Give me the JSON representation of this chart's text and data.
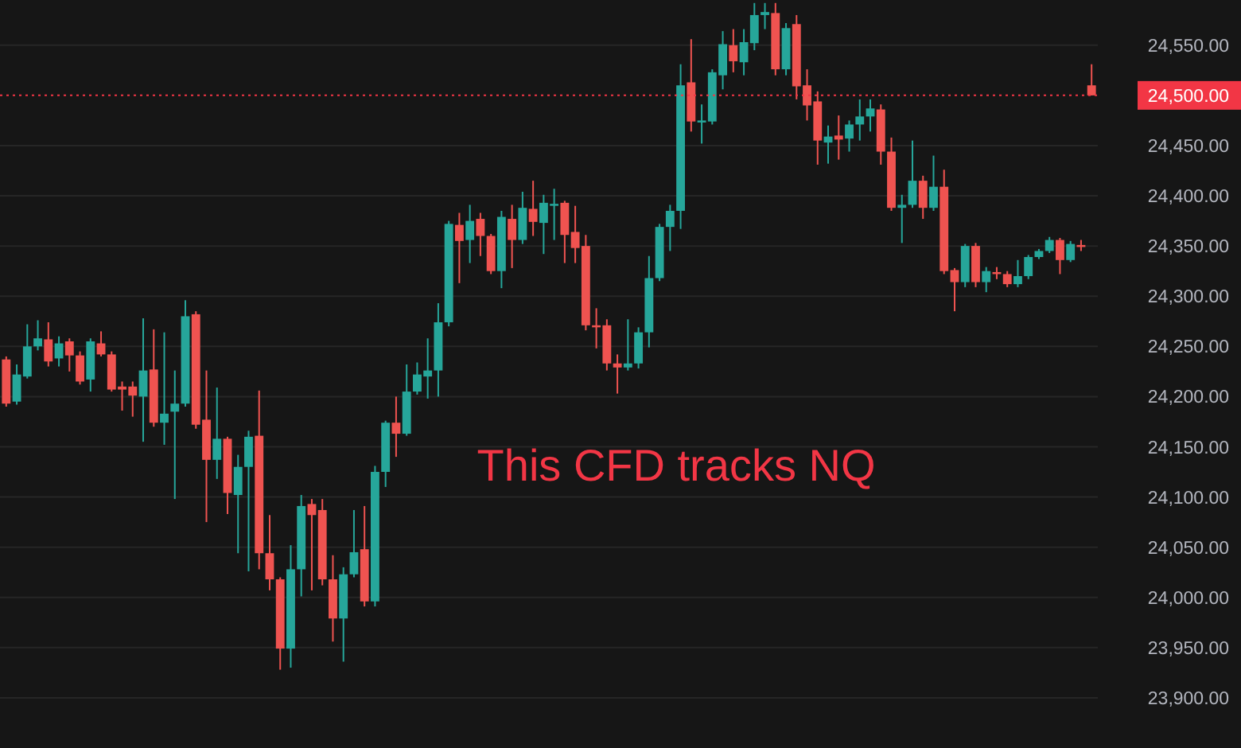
{
  "chart_data": {
    "type": "candlestick",
    "categories": [
      null,
      null,
      null,
      null,
      null,
      null,
      null,
      null,
      null,
      null,
      null,
      null,
      null,
      null,
      null,
      null,
      null,
      null,
      null,
      null,
      null,
      null,
      null,
      null,
      null,
      null,
      null,
      null,
      null,
      null,
      null,
      null,
      null,
      null,
      null,
      null,
      null,
      null,
      null,
      null,
      null,
      null,
      null,
      null,
      null,
      null,
      null,
      null,
      null,
      null,
      null,
      null,
      null,
      null,
      null,
      null,
      null,
      null,
      null,
      null,
      null,
      null,
      null,
      null,
      null,
      null,
      null,
      null,
      null,
      null,
      null,
      null,
      null,
      null,
      null,
      null,
      null,
      null,
      null,
      null,
      null,
      null,
      null,
      null,
      null,
      null,
      null,
      null,
      null,
      null,
      null,
      null,
      null,
      null,
      null,
      null,
      null,
      null,
      null,
      null,
      null,
      null,
      null,
      null
    ],
    "ohlc": [
      [
        24237,
        24240,
        24190,
        24193
      ],
      [
        24195,
        24232,
        24192,
        24222
      ],
      [
        24220,
        24272,
        24218,
        24250
      ],
      [
        24250,
        24276,
        24246,
        24258
      ],
      [
        24257,
        24274,
        24230,
        24235
      ],
      [
        24238,
        24260,
        24230,
        24253
      ],
      [
        24255,
        24258,
        24225,
        24241
      ],
      [
        24241,
        24245,
        24212,
        24215
      ],
      [
        24217,
        24258,
        24205,
        24255
      ],
      [
        24253,
        24265,
        24240,
        24242
      ],
      [
        24242,
        24245,
        24205,
        24207
      ],
      [
        24210,
        24215,
        24186,
        24207
      ],
      [
        24210,
        24215,
        24180,
        24201
      ],
      [
        24200,
        24278,
        24155,
        24226
      ],
      [
        24227,
        24267,
        24170,
        24174
      ],
      [
        24174,
        24264,
        24152,
        24183
      ],
      [
        24185,
        24226,
        24098,
        24193
      ],
      [
        24193,
        24296,
        24190,
        24280
      ],
      [
        24282,
        24285,
        24168,
        24172
      ],
      [
        24177,
        24226,
        24075,
        24137
      ],
      [
        24137,
        24209,
        24118,
        24158
      ],
      [
        24158,
        24160,
        24083,
        24104
      ],
      [
        24102,
        24142,
        24044,
        24130
      ],
      [
        24130,
        24166,
        24026,
        24160
      ],
      [
        24161,
        24206,
        24028,
        24044
      ],
      [
        24044,
        24082,
        24007,
        24018
      ],
      [
        24018,
        24020,
        23928,
        23949
      ],
      [
        23949,
        24052,
        23930,
        24028
      ],
      [
        24028,
        24102,
        24001,
        24091
      ],
      [
        24093,
        24098,
        24007,
        24082
      ],
      [
        24087,
        24098,
        24012,
        24018
      ],
      [
        24018,
        24042,
        23956,
        23979
      ],
      [
        23979,
        24030,
        23936,
        24023
      ],
      [
        24023,
        24087,
        24020,
        24045
      ],
      [
        24048,
        24091,
        23991,
        23996
      ],
      [
        23996,
        24131,
        23991,
        24125
      ],
      [
        24125,
        24176,
        24110,
        24174
      ],
      [
        24174,
        24200,
        24140,
        24163
      ],
      [
        24163,
        24232,
        24161,
        24205
      ],
      [
        24205,
        24234,
        24202,
        24222
      ],
      [
        24220,
        24258,
        24198,
        24226
      ],
      [
        24226,
        24293,
        24200,
        24274
      ],
      [
        24274,
        24375,
        24270,
        24372
      ],
      [
        24371,
        24383,
        24313,
        24355
      ],
      [
        24356,
        24391,
        24333,
        24375
      ],
      [
        24377,
        24383,
        24340,
        24360
      ],
      [
        24360,
        24362,
        24322,
        24325
      ],
      [
        24325,
        24385,
        24308,
        24379
      ],
      [
        24377,
        24391,
        24328,
        24356
      ],
      [
        24356,
        24404,
        24352,
        24388
      ],
      [
        24387,
        24415,
        24360,
        24374
      ],
      [
        24373,
        24401,
        24342,
        24393
      ],
      [
        24390,
        24407,
        24356,
        24392
      ],
      [
        24393,
        24395,
        24333,
        24361
      ],
      [
        24364,
        24390,
        24333,
        24348
      ],
      [
        24350,
        24361,
        24266,
        24271
      ],
      [
        24271,
        24288,
        24248,
        24269
      ],
      [
        24271,
        24277,
        24226,
        24233
      ],
      [
        24233,
        24242,
        24203,
        24229
      ],
      [
        24229,
        24277,
        24226,
        24233
      ],
      [
        24233,
        24269,
        24228,
        24264
      ],
      [
        24264,
        24340,
        24249,
        24318
      ],
      [
        24318,
        24372,
        24315,
        24369
      ],
      [
        24369,
        24391,
        24345,
        24385
      ],
      [
        24385,
        24531,
        24367,
        24510
      ],
      [
        24513,
        24556,
        24464,
        24474
      ],
      [
        24473,
        24491,
        24452,
        24475
      ],
      [
        24474,
        24526,
        24471,
        24523
      ],
      [
        24520,
        24564,
        24506,
        24551
      ],
      [
        24550,
        24566,
        24523,
        24534
      ],
      [
        24533,
        24566,
        24520,
        24553
      ],
      [
        24552,
        24592,
        24545,
        24580
      ],
      [
        24580,
        24592,
        24566,
        24583
      ],
      [
        24582,
        24592,
        24520,
        24526
      ],
      [
        24526,
        24572,
        24520,
        24567
      ],
      [
        24571,
        24580,
        24496,
        24509
      ],
      [
        24510,
        24526,
        24475,
        24490
      ],
      [
        24494,
        24504,
        24431,
        24455
      ],
      [
        24453,
        24470,
        24432,
        24459
      ],
      [
        24460,
        24480,
        24436,
        24456
      ],
      [
        24457,
        24475,
        24444,
        24471
      ],
      [
        24471,
        24496,
        24455,
        24479
      ],
      [
        24479,
        24496,
        24464,
        24487
      ],
      [
        24486,
        24491,
        24431,
        24444
      ],
      [
        24444,
        24458,
        24385,
        24388
      ],
      [
        24388,
        24401,
        24353,
        24391
      ],
      [
        24391,
        24455,
        24388,
        24415
      ],
      [
        24415,
        24420,
        24377,
        24388
      ],
      [
        24388,
        24440,
        24385,
        24409
      ],
      [
        24409,
        24426,
        24322,
        24325
      ],
      [
        24326,
        24328,
        24285,
        24314
      ],
      [
        24314,
        24352,
        24309,
        24350
      ],
      [
        24350,
        24353,
        24309,
        24314
      ],
      [
        24314,
        24329,
        24304,
        24325
      ],
      [
        24324,
        24329,
        24317,
        24322
      ],
      [
        24322,
        24325,
        24309,
        24312
      ],
      [
        24312,
        24336,
        24309,
        24320
      ],
      [
        24320,
        24341,
        24317,
        24339
      ],
      [
        24339,
        24347,
        24337,
        24345
      ],
      [
        24345,
        24359,
        24343,
        24356
      ],
      [
        24356,
        24358,
        24322,
        24336
      ],
      [
        24336,
        24355,
        24334,
        24352
      ],
      [
        24351,
        24356,
        24345,
        24349
      ],
      [
        24510,
        24531,
        24500,
        24500
      ]
    ],
    "colors": [
      "#ef5350",
      "#26a69a",
      "#26a69a",
      "#26a69a",
      "#ef5350",
      "#26a69a",
      "#ef5350",
      "#ef5350",
      "#26a69a",
      "#ef5350",
      "#ef5350",
      "#ef5350",
      "#ef5350",
      "#26a69a",
      "#ef5350",
      "#26a69a",
      "#26a69a",
      "#26a69a",
      "#ef5350",
      "#ef5350",
      "#26a69a",
      "#ef5350",
      "#26a69a",
      "#26a69a",
      "#ef5350",
      "#ef5350",
      "#ef5350",
      "#26a69a",
      "#26a69a",
      "#ef5350",
      "#ef5350",
      "#ef5350",
      "#26a69a",
      "#26a69a",
      "#ef5350",
      "#26a69a",
      "#26a69a",
      "#ef5350",
      "#26a69a",
      "#26a69a",
      "#26a69a",
      "#26a69a",
      "#26a69a",
      "#ef5350",
      "#26a69a",
      "#ef5350",
      "#ef5350",
      "#26a69a",
      "#ef5350",
      "#26a69a",
      "#ef5350",
      "#26a69a",
      "#26a69a",
      "#ef5350",
      "#ef5350",
      "#ef5350",
      "#ef5350",
      "#ef5350",
      "#ef5350",
      "#26a69a",
      "#26a69a",
      "#26a69a",
      "#26a69a",
      "#26a69a",
      "#26a69a",
      "#ef5350",
      "#26a69a",
      "#26a69a",
      "#26a69a",
      "#ef5350",
      "#26a69a",
      "#26a69a",
      "#26a69a",
      "#ef5350",
      "#26a69a",
      "#ef5350",
      "#ef5350",
      "#ef5350",
      "#26a69a",
      "#ef5350",
      "#26a69a",
      "#26a69a",
      "#26a69a",
      "#ef5350",
      "#ef5350",
      "#26a69a",
      "#26a69a",
      "#ef5350",
      "#26a69a",
      "#ef5350",
      "#ef5350",
      "#26a69a",
      "#ef5350",
      "#26a69a",
      "#ef5350",
      "#ef5350",
      "#26a69a",
      "#26a69a",
      "#26a69a",
      "#26a69a",
      "#ef5350",
      "#26a69a",
      "#ef5350",
      "#ef5350"
    ],
    "ylim": [
      23850,
      24595
    ],
    "yticks": [
      {
        "value": 23900,
        "label": "23,900.00"
      },
      {
        "value": 23950,
        "label": "23,950.00"
      },
      {
        "value": 24000,
        "label": "24,000.00"
      },
      {
        "value": 24050,
        "label": "24,050.00"
      },
      {
        "value": 24100,
        "label": "24,100.00"
      },
      {
        "value": 24150,
        "label": "24,150.00"
      },
      {
        "value": 24200,
        "label": "24,200.00"
      },
      {
        "value": 24250,
        "label": "24,250.00"
      },
      {
        "value": 24300,
        "label": "24,300.00"
      },
      {
        "value": 24350,
        "label": "24,350.00"
      },
      {
        "value": 24400,
        "label": "24,400.00"
      },
      {
        "value": 24450,
        "label": "24,450.00"
      },
      {
        "value": 24550,
        "label": "24,550.00"
      }
    ],
    "grid": "y",
    "ref_lines": [
      {
        "axis": "y",
        "value": 24500,
        "label": "24,500.00",
        "color": "#f23645",
        "line_style": "dotted"
      }
    ],
    "annotations": [
      "This CFD tracks NQ"
    ]
  }
}
